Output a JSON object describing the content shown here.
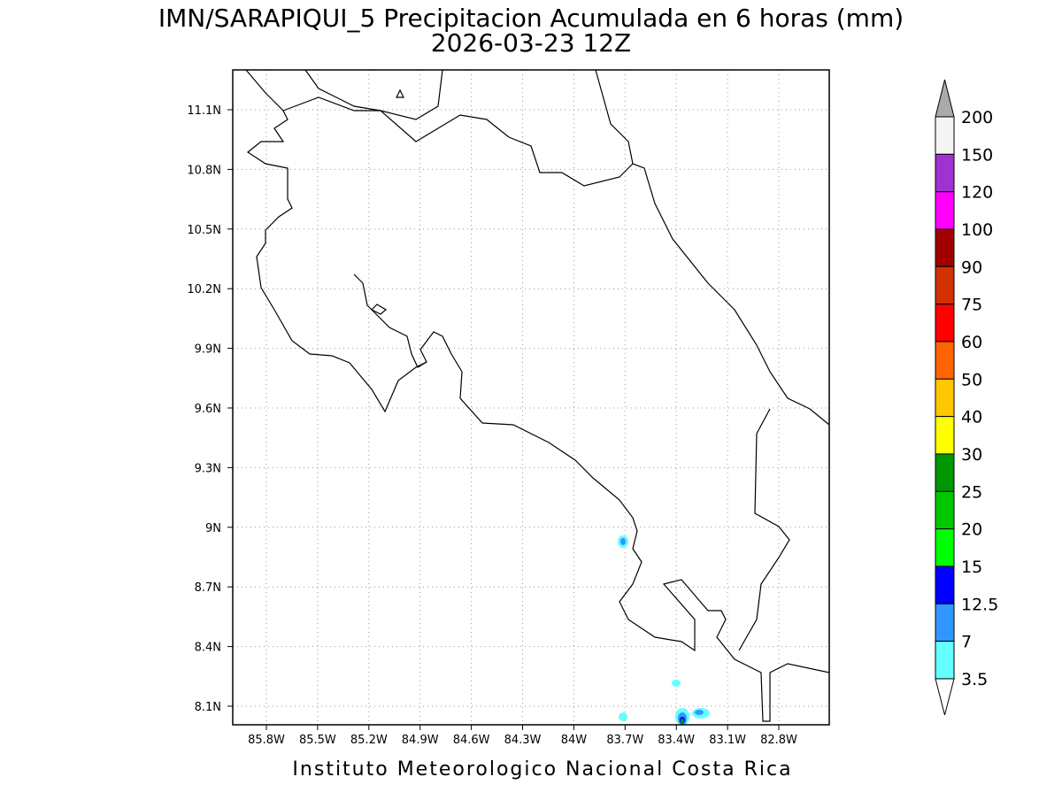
{
  "title": [
    "IMN/SARAPIQUI_5 Precipitacion Acumulada en 6 horas (mm)",
    "2026-03-23 12Z"
  ],
  "map": {
    "x_labels": [
      "85.8W",
      "85.5W",
      "85.2W",
      "84.9W",
      "84.6W",
      "84.3W",
      "84W",
      "83.7W",
      "83.4W",
      "83.1W",
      "82.8W"
    ],
    "y_labels": [
      "11.1N",
      "10.8N",
      "10.5N",
      "10.2N",
      "9.9N",
      "9.6N",
      "9.3N",
      "9N",
      "8.7N",
      "8.4N",
      "8.1N"
    ]
  },
  "colorbar": {
    "labels": [
      "200",
      "150",
      "120",
      "100",
      "90",
      "75",
      "60",
      "50",
      "40",
      "30",
      "25",
      "20",
      "15",
      "12.5",
      "7",
      "3.5"
    ],
    "colors": [
      "#aaaaaa",
      "#f5f5f5",
      "#a032d2",
      "#ff00ff",
      "#a00000",
      "#d23200",
      "#ff0000",
      "#ff6400",
      "#ffc800",
      "#ffff00",
      "#009600",
      "#00c800",
      "#00ff00",
      "#0000ff",
      "#3296ff",
      "#64ffff",
      "#ffffff"
    ]
  },
  "footer": "Instituto Meteorologico Nacional Costa Rica"
}
